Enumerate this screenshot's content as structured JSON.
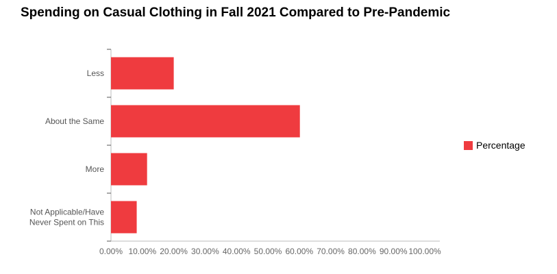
{
  "chart_data": {
    "type": "bar",
    "orientation": "horizontal",
    "title": "Spending on Casual Clothing in Fall 2021 Compared to Pre-Pandemic",
    "categories": [
      [
        "Less"
      ],
      [
        "About the Same"
      ],
      [
        "More"
      ],
      [
        "Not Applicable/Have",
        "Never Spent on This"
      ]
    ],
    "series": [
      {
        "name": "Percentage",
        "values": [
          20.0,
          60.2,
          11.5,
          8.2
        ]
      }
    ],
    "xlim": [
      0,
      100
    ],
    "x_ticks": [
      "0.00%",
      "10.00%",
      "20.00%",
      "30.00%",
      "40.00%",
      "50.00%",
      "60.00%",
      "70.00%",
      "80.00%",
      "90.00%",
      "100.00%"
    ],
    "grid": false,
    "legend_position": "right",
    "colors": {
      "bar": "#EF3B3F",
      "axis": "#BBBBBB",
      "tick_text": "#666666",
      "cat_text": "#555555"
    }
  }
}
